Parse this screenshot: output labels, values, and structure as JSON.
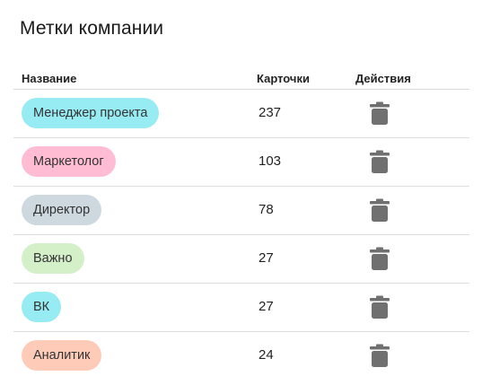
{
  "title": "Метки компании",
  "table": {
    "headers": {
      "name": "Название",
      "cards": "Карточки",
      "actions": "Действия"
    },
    "rows": [
      {
        "label": "Менеджер проекта",
        "count": "237",
        "color": "#96ecf2"
      },
      {
        "label": "Маркетолог",
        "count": "103",
        "color": "#ffbcd3"
      },
      {
        "label": "Директор",
        "count": "78",
        "color": "#cdd9df"
      },
      {
        "label": "Важно",
        "count": "27",
        "color": "#d4f0c9"
      },
      {
        "label": "ВК",
        "count": "27",
        "color": "#96ecf2"
      },
      {
        "label": "Аналитик",
        "count": "24",
        "color": "#ffcbb9"
      }
    ],
    "action_icon": "trash-icon",
    "icon_color": "#707070"
  }
}
